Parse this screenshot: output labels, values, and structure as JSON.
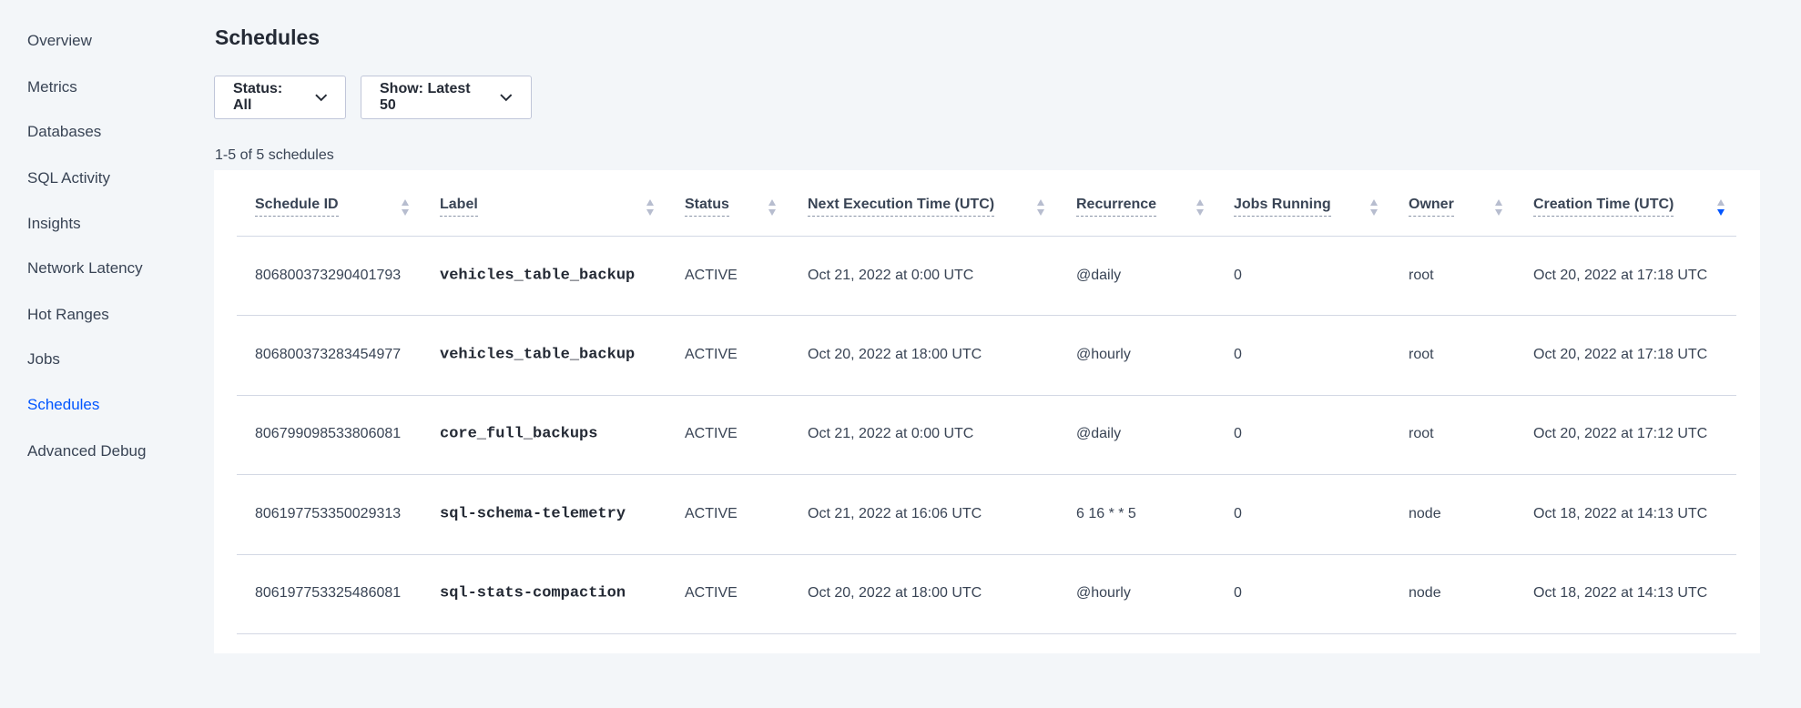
{
  "sidebar": {
    "items": [
      {
        "label": "Overview",
        "active": false
      },
      {
        "label": "Metrics",
        "active": false
      },
      {
        "label": "Databases",
        "active": false
      },
      {
        "label": "SQL Activity",
        "active": false
      },
      {
        "label": "Insights",
        "active": false
      },
      {
        "label": "Network Latency",
        "active": false
      },
      {
        "label": "Hot Ranges",
        "active": false
      },
      {
        "label": "Jobs",
        "active": false
      },
      {
        "label": "Schedules",
        "active": true
      },
      {
        "label": "Advanced Debug",
        "active": false
      }
    ]
  },
  "page": {
    "title": "Schedules",
    "count_text": "1-5 of 5 schedules"
  },
  "filters": {
    "status": "Status: All",
    "show": "Show: Latest 50"
  },
  "colors": {
    "accent": "#0055ff",
    "background": "#f3f6f9",
    "text": "#394455"
  },
  "table": {
    "columns": [
      {
        "label": "Schedule ID",
        "sort": "none"
      },
      {
        "label": "Label",
        "sort": "none"
      },
      {
        "label": "Status",
        "sort": "none"
      },
      {
        "label": "Next Execution Time (UTC)",
        "sort": "none"
      },
      {
        "label": "Recurrence",
        "sort": "none"
      },
      {
        "label": "Jobs Running",
        "sort": "none"
      },
      {
        "label": "Owner",
        "sort": "none"
      },
      {
        "label": "Creation Time (UTC)",
        "sort": "descending"
      }
    ],
    "rows": [
      [
        "806800373290401793",
        "vehicles_table_backup",
        "ACTIVE",
        "Oct 21, 2022 at 0:00 UTC",
        "@daily",
        "0",
        "root",
        "Oct 20, 2022 at 17:18 UTC"
      ],
      [
        "806800373283454977",
        "vehicles_table_backup",
        "ACTIVE",
        "Oct 20, 2022 at 18:00 UTC",
        "@hourly",
        "0",
        "root",
        "Oct 20, 2022 at 17:18 UTC"
      ],
      [
        "806799098533806081",
        "core_full_backups",
        "ACTIVE",
        "Oct 21, 2022 at 0:00 UTC",
        "@daily",
        "0",
        "root",
        "Oct 20, 2022 at 17:12 UTC"
      ],
      [
        "806197753350029313",
        "sql-schema-telemetry",
        "ACTIVE",
        "Oct 21, 2022 at 16:06 UTC",
        "6 16 * * 5",
        "0",
        "node",
        "Oct 18, 2022 at 14:13 UTC"
      ],
      [
        "806197753325486081",
        "sql-stats-compaction",
        "ACTIVE",
        "Oct 20, 2022 at 18:00 UTC",
        "@hourly",
        "0",
        "node",
        "Oct 18, 2022 at 14:13 UTC"
      ]
    ]
  }
}
